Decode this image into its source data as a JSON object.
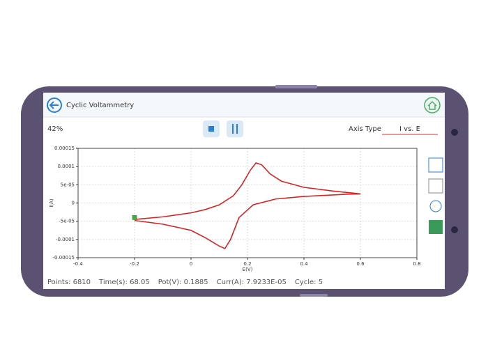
{
  "header": {
    "title": "Cyclic Voltammetry"
  },
  "toolbar": {
    "progress": "42%",
    "axis_type_label": "Axis Type",
    "axis_type_value": "I vs. E"
  },
  "status": [
    "Points: 6810",
    "Time(s): 68.05",
    "Pot(V): 0.1885",
    "Curr(A): 7.9233E-05",
    "Cycle: 5"
  ],
  "chart_data": {
    "type": "line",
    "x_label": "E(V)",
    "y_label": "I(A)",
    "xlim": [
      -0.4,
      0.8
    ],
    "xticks": [
      -0.4,
      -0.2,
      0,
      0.2,
      0.4,
      0.6,
      0.8
    ],
    "ylim": [
      -0.00015,
      0.00015
    ],
    "yticks": [
      -0.00015,
      -0.0001,
      {
        "value": -5e-05,
        "label": "-5e-05"
      },
      0,
      {
        "value": 5e-05,
        "label": "5e-05"
      },
      0.0001,
      0.00015
    ],
    "grid": true,
    "x": [
      -0.2,
      -0.1,
      0,
      0.05,
      0.1,
      0.15,
      0.18,
      0.21,
      0.23,
      0.25,
      0.28,
      0.32,
      0.4,
      0.5,
      0.6,
      0.55,
      0.4,
      0.3,
      0.22,
      0.17,
      0.14,
      0.12,
      0.1,
      0.05,
      0,
      -0.1,
      -0.2
    ],
    "series": [
      {
        "color": "#d62424",
        "values": [
          -4.5e-05,
          -3.8e-05,
          -2.7e-05,
          -1.8e-05,
          -5e-06,
          2e-05,
          5e-05,
          9e-05,
          0.00011,
          0.000105,
          8e-05,
          6e-05,
          4.3e-05,
          3.3e-05,
          2.5e-05,
          2.4e-05,
          1.8e-05,
          1.1e-05,
          -5e-06,
          -4e-05,
          -0.0001,
          -0.000125,
          -0.000118,
          -9.5e-05,
          -7.5e-05,
          -5.8e-05,
          -4.8e-05
        ]
      }
    ],
    "marker": {
      "x": -0.2,
      "y": -4e-05,
      "color": "#3cb043"
    }
  }
}
